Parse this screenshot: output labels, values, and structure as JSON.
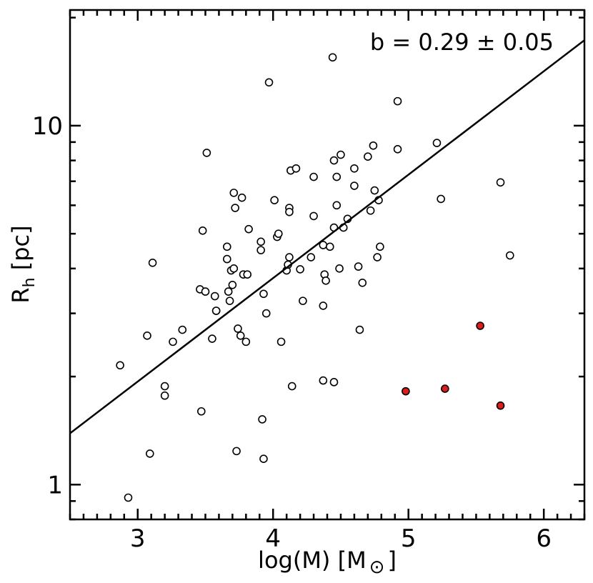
{
  "chart_data": {
    "type": "scatter",
    "title": "",
    "xlabel": "log(M) [M",
    "xlabel_sym": "⊙",
    "xlabel_end": "]",
    "ylabel": "R",
    "ylabel_sub": "h",
    "ylabel_end": " [pc]",
    "xlim": [
      2.5,
      6.3
    ],
    "ylim": [
      0.8,
      21
    ],
    "yscale": "log",
    "xticks": [
      3,
      4,
      5,
      6
    ],
    "xtick_labels": [
      "3",
      "4",
      "5",
      "6"
    ],
    "yticks": [
      1,
      10
    ],
    "ytick_labels": [
      "1",
      "10"
    ],
    "annotation": "b = 0.29 ± 0.05",
    "fit_line": {
      "slope": 0.29,
      "x": [
        2.5,
        6.3
      ],
      "y": [
        1.39,
        17.3
      ]
    },
    "series": [
      {
        "name": "open",
        "fill": "#ffffff",
        "stroke": "#000000",
        "points": [
          [
            2.87,
            2.15
          ],
          [
            2.93,
            0.92
          ],
          [
            3.07,
            2.6
          ],
          [
            3.09,
            1.22
          ],
          [
            3.11,
            4.15
          ],
          [
            3.2,
            1.88
          ],
          [
            3.2,
            1.77
          ],
          [
            3.26,
            2.5
          ],
          [
            3.33,
            2.7
          ],
          [
            3.46,
            3.5
          ],
          [
            3.47,
            1.6
          ],
          [
            3.48,
            5.1
          ],
          [
            3.5,
            3.45
          ],
          [
            3.51,
            8.4
          ],
          [
            3.55,
            2.55
          ],
          [
            3.57,
            3.35
          ],
          [
            3.58,
            3.05
          ],
          [
            3.58,
            3.05
          ],
          [
            3.66,
            4.6
          ],
          [
            3.66,
            4.25
          ],
          [
            3.67,
            3.45
          ],
          [
            3.68,
            3.25
          ],
          [
            3.69,
            3.95
          ],
          [
            3.7,
            3.6
          ],
          [
            3.71,
            4.0
          ],
          [
            3.71,
            6.5
          ],
          [
            3.72,
            5.9
          ],
          [
            3.73,
            1.24
          ],
          [
            3.74,
            2.72
          ],
          [
            3.76,
            2.6
          ],
          [
            3.77,
            6.3
          ],
          [
            3.78,
            3.85
          ],
          [
            3.8,
            2.5
          ],
          [
            3.81,
            3.85
          ],
          [
            3.82,
            5.15
          ],
          [
            3.91,
            4.5
          ],
          [
            3.91,
            4.75
          ],
          [
            3.92,
            1.52
          ],
          [
            3.93,
            3.4
          ],
          [
            3.93,
            1.18
          ],
          [
            3.95,
            3.0
          ],
          [
            3.97,
            13.2
          ],
          [
            4.01,
            6.2
          ],
          [
            4.03,
            4.9
          ],
          [
            4.04,
            5.0
          ],
          [
            4.06,
            2.5
          ],
          [
            4.1,
            3.95
          ],
          [
            4.11,
            4.1
          ],
          [
            4.12,
            4.3
          ],
          [
            4.12,
            5.9
          ],
          [
            4.12,
            5.75
          ],
          [
            4.13,
            7.5
          ],
          [
            4.14,
            1.88
          ],
          [
            4.17,
            7.6
          ],
          [
            4.2,
            3.98
          ],
          [
            4.22,
            3.25
          ],
          [
            4.28,
            4.3
          ],
          [
            4.3,
            7.2
          ],
          [
            4.3,
            5.6
          ],
          [
            4.37,
            4.65
          ],
          [
            4.37,
            1.95
          ],
          [
            4.37,
            3.15
          ],
          [
            4.38,
            3.85
          ],
          [
            4.39,
            3.7
          ],
          [
            4.42,
            4.6
          ],
          [
            4.44,
            15.5
          ],
          [
            4.45,
            8.0
          ],
          [
            4.45,
            1.93
          ],
          [
            4.45,
            5.2
          ],
          [
            4.47,
            7.2
          ],
          [
            4.47,
            6.0
          ],
          [
            4.49,
            4.0
          ],
          [
            4.5,
            8.3
          ],
          [
            4.52,
            5.2
          ],
          [
            4.55,
            5.5
          ],
          [
            4.6,
            6.8
          ],
          [
            4.6,
            7.6
          ],
          [
            4.63,
            4.05
          ],
          [
            4.64,
            2.7
          ],
          [
            4.66,
            3.65
          ],
          [
            4.7,
            8.2
          ],
          [
            4.72,
            5.8
          ],
          [
            4.74,
            8.8
          ],
          [
            4.75,
            6.6
          ],
          [
            4.77,
            4.3
          ],
          [
            4.78,
            6.2
          ],
          [
            4.79,
            4.6
          ],
          [
            4.92,
            8.6
          ],
          [
            4.92,
            11.7
          ],
          [
            5.21,
            8.95
          ],
          [
            5.24,
            6.25
          ],
          [
            5.68,
            6.95
          ],
          [
            5.75,
            4.35
          ]
        ]
      },
      {
        "name": "red",
        "fill": "#dd1c1c",
        "stroke": "#000000",
        "points": [
          [
            4.98,
            1.82
          ],
          [
            5.27,
            1.85
          ],
          [
            5.53,
            2.77
          ],
          [
            5.68,
            1.66
          ]
        ]
      }
    ]
  }
}
